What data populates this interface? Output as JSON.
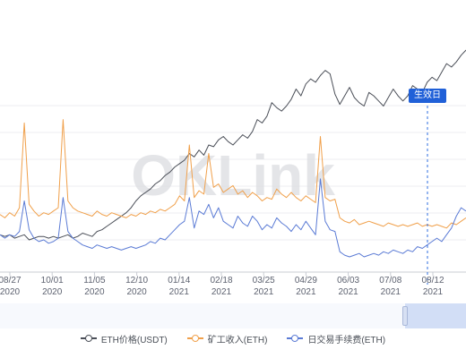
{
  "chart_data": {
    "type": "line",
    "watermark": "OKLink",
    "marker_label": "生效日",
    "x_ticks": [
      [
        "08/27",
        "2020"
      ],
      [
        "10/01",
        "2020"
      ],
      [
        "11/05",
        "2020"
      ],
      [
        "12/10",
        "2020"
      ],
      [
        "01/14",
        "2021"
      ],
      [
        "02/18",
        "2021"
      ],
      [
        "03/25",
        "2021"
      ],
      [
        "04/29",
        "2021"
      ],
      [
        "06/03",
        "2021"
      ],
      [
        "07/08",
        "2021"
      ],
      [
        "08/12",
        "2021"
      ]
    ],
    "series": [
      {
        "name": "ETH价格(USDT)",
        "color": "#4b4f58",
        "values": [
          22,
          21,
          22,
          20,
          21,
          22,
          19,
          20,
          21,
          21,
          20,
          21,
          20,
          21,
          22,
          20,
          21,
          23,
          22,
          21,
          24,
          25,
          27,
          29,
          31,
          33,
          35,
          38,
          42,
          45,
          47,
          49,
          52,
          54,
          57,
          59,
          62,
          64,
          66,
          70,
          68,
          72,
          69,
          75,
          74,
          78,
          80,
          77,
          75,
          78,
          81,
          79,
          83,
          90,
          88,
          92,
          100,
          97,
          95,
          98,
          102,
          108,
          104,
          111,
          114,
          112,
          116,
          119,
          117,
          105,
          99,
          104,
          109,
          103,
          100,
          98,
          106,
          104,
          101,
          98,
          103,
          108,
          104,
          101,
          104,
          110,
          108,
          106,
          112,
          115,
          113,
          118,
          123,
          121,
          124,
          128,
          131
        ]
      },
      {
        "name": "矿工收入(ETH)",
        "color": "#f0a04b",
        "values": [
          34,
          32,
          35,
          33,
          38,
          88,
          40,
          36,
          33,
          35,
          34,
          36,
          38,
          90,
          42,
          38,
          36,
          35,
          34,
          33,
          36,
          34,
          33,
          35,
          34,
          33,
          32,
          34,
          33,
          35,
          34,
          36,
          35,
          37,
          36,
          38,
          40,
          45,
          42,
          75,
          44,
          48,
          46,
          70,
          50,
          52,
          47,
          49,
          51,
          46,
          48,
          44,
          47,
          45,
          42,
          44,
          43,
          49,
          46,
          44,
          47,
          44,
          42,
          45,
          43,
          41,
          80,
          44,
          42,
          43,
          32,
          30,
          29,
          31,
          28,
          29,
          30,
          29,
          28,
          27,
          29,
          28,
          27,
          28,
          27,
          28,
          29,
          27,
          28,
          27,
          28,
          27,
          26,
          29,
          28,
          30,
          32
        ]
      },
      {
        "name": "日交易手续费(ETH)",
        "color": "#5b7bd5",
        "values": [
          22,
          20,
          22,
          21,
          24,
          42,
          25,
          20,
          18,
          19,
          17,
          18,
          20,
          44,
          24,
          20,
          18,
          16,
          15,
          14,
          16,
          15,
          14,
          15,
          14,
          13,
          14,
          15,
          14,
          15,
          16,
          18,
          17,
          20,
          19,
          22,
          25,
          28,
          30,
          44,
          26,
          36,
          34,
          40,
          32,
          38,
          30,
          28,
          26,
          33,
          29,
          27,
          33,
          30,
          25,
          28,
          26,
          32,
          29,
          27,
          24,
          28,
          25,
          30,
          26,
          22,
          55,
          30,
          25,
          24,
          12,
          10,
          9,
          10,
          11,
          9,
          10,
          11,
          10,
          12,
          11,
          13,
          12,
          11,
          13,
          12,
          15,
          14,
          16,
          18,
          20,
          18,
          22,
          26,
          33,
          38,
          36
        ]
      }
    ],
    "ylim": [
      0,
      150
    ]
  },
  "legend": {
    "items": [
      {
        "label": "ETH价格(USDT)",
        "color": "#4b4f58"
      },
      {
        "label": "矿工收入(ETH)",
        "color": "#f0a04b"
      },
      {
        "label": "日交易手续费(ETH)",
        "color": "#5b7bd5"
      }
    ]
  }
}
